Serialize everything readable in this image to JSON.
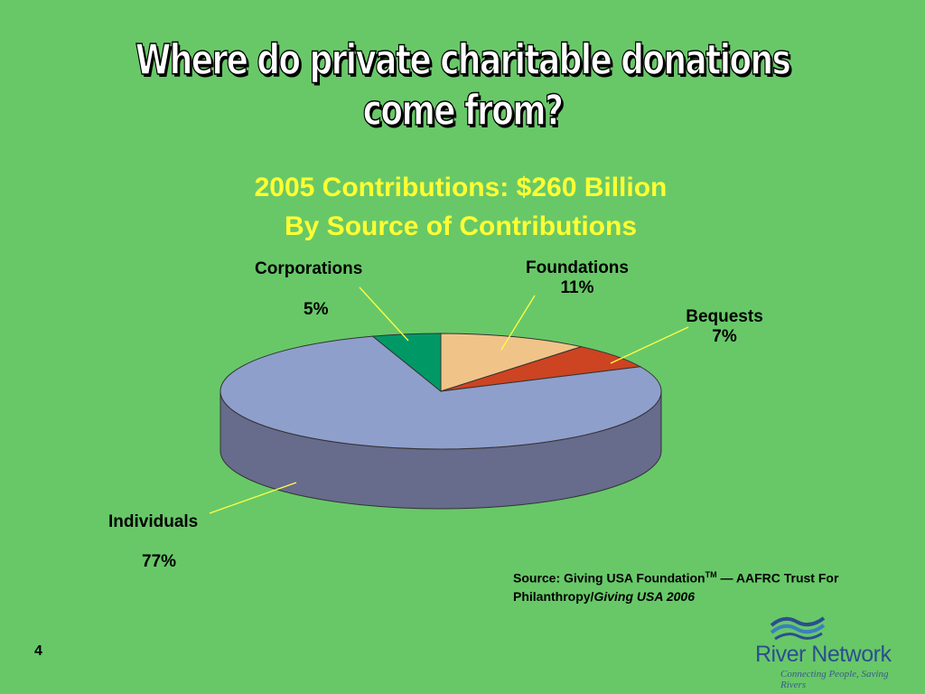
{
  "slide": {
    "title": "Where do private charitable donations come from?",
    "subtitle_line1": "2005 Contributions: $260 Billion",
    "subtitle_line2": "By Source of Contributions",
    "page_number": "4",
    "source_prefix": "Source: Giving USA Foundation",
    "source_tm": "TM",
    "source_mid": " — AAFRC Trust For Philanthropy/",
    "source_italic": "Giving USA 2006",
    "logo_name": "River Network",
    "logo_tagline": "Connecting People, Saving Rivers",
    "logo_icon": "river-waves-icon"
  },
  "chart_data": {
    "type": "pie",
    "title": "2005 Contributions: $260 Billion",
    "subtitle": "By Source of Contributions",
    "style": "3d-exploded-none",
    "slices": [
      {
        "label": "Individuals",
        "value": 77,
        "display": "77%",
        "color": "#8f9fcc",
        "side_color": "#676b8c"
      },
      {
        "label": "Corporations",
        "value": 5,
        "display": "5%",
        "color": "#009966",
        "side_color": "#006644"
      },
      {
        "label": "Foundations",
        "value": 11,
        "display": "11%",
        "color": "#f0c488",
        "side_color": "#b0905c"
      },
      {
        "label": "Bequests",
        "value": 7,
        "display": "7%",
        "color": "#cc4422",
        "side_color": "#8a2e14"
      }
    ]
  }
}
